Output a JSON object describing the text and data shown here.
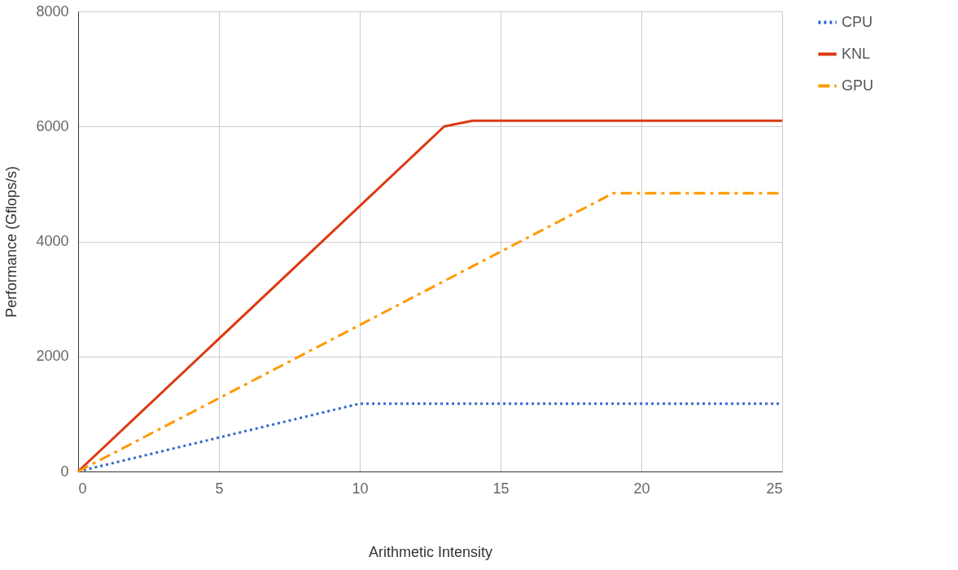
{
  "chart_data": {
    "type": "line",
    "xlabel": "Arithmetic Intensity",
    "ylabel": "Performance (Gflops/s)",
    "xlim": [
      0,
      25
    ],
    "xticks": [
      0,
      5,
      10,
      15,
      20,
      25
    ],
    "ylim": [
      0,
      8000
    ],
    "yticks": [
      0,
      2000,
      4000,
      6000,
      8000
    ],
    "grid": true,
    "legend": "top right",
    "series": [
      {
        "name": "CPU",
        "color": "#3366cc",
        "line_style": "dotted",
        "x": [
          0,
          10,
          25
        ],
        "values": [
          0,
          1180,
          1180
        ]
      },
      {
        "name": "KNL",
        "color": "#dc3912",
        "line_style": "solid",
        "x": [
          0,
          13,
          14,
          25
        ],
        "values": [
          0,
          6000,
          6100,
          6100
        ]
      },
      {
        "name": "GPU",
        "color": "#ff9900",
        "line_style": "dashed",
        "x": [
          0,
          19,
          25
        ],
        "values": [
          0,
          4840,
          4840
        ]
      }
    ]
  }
}
